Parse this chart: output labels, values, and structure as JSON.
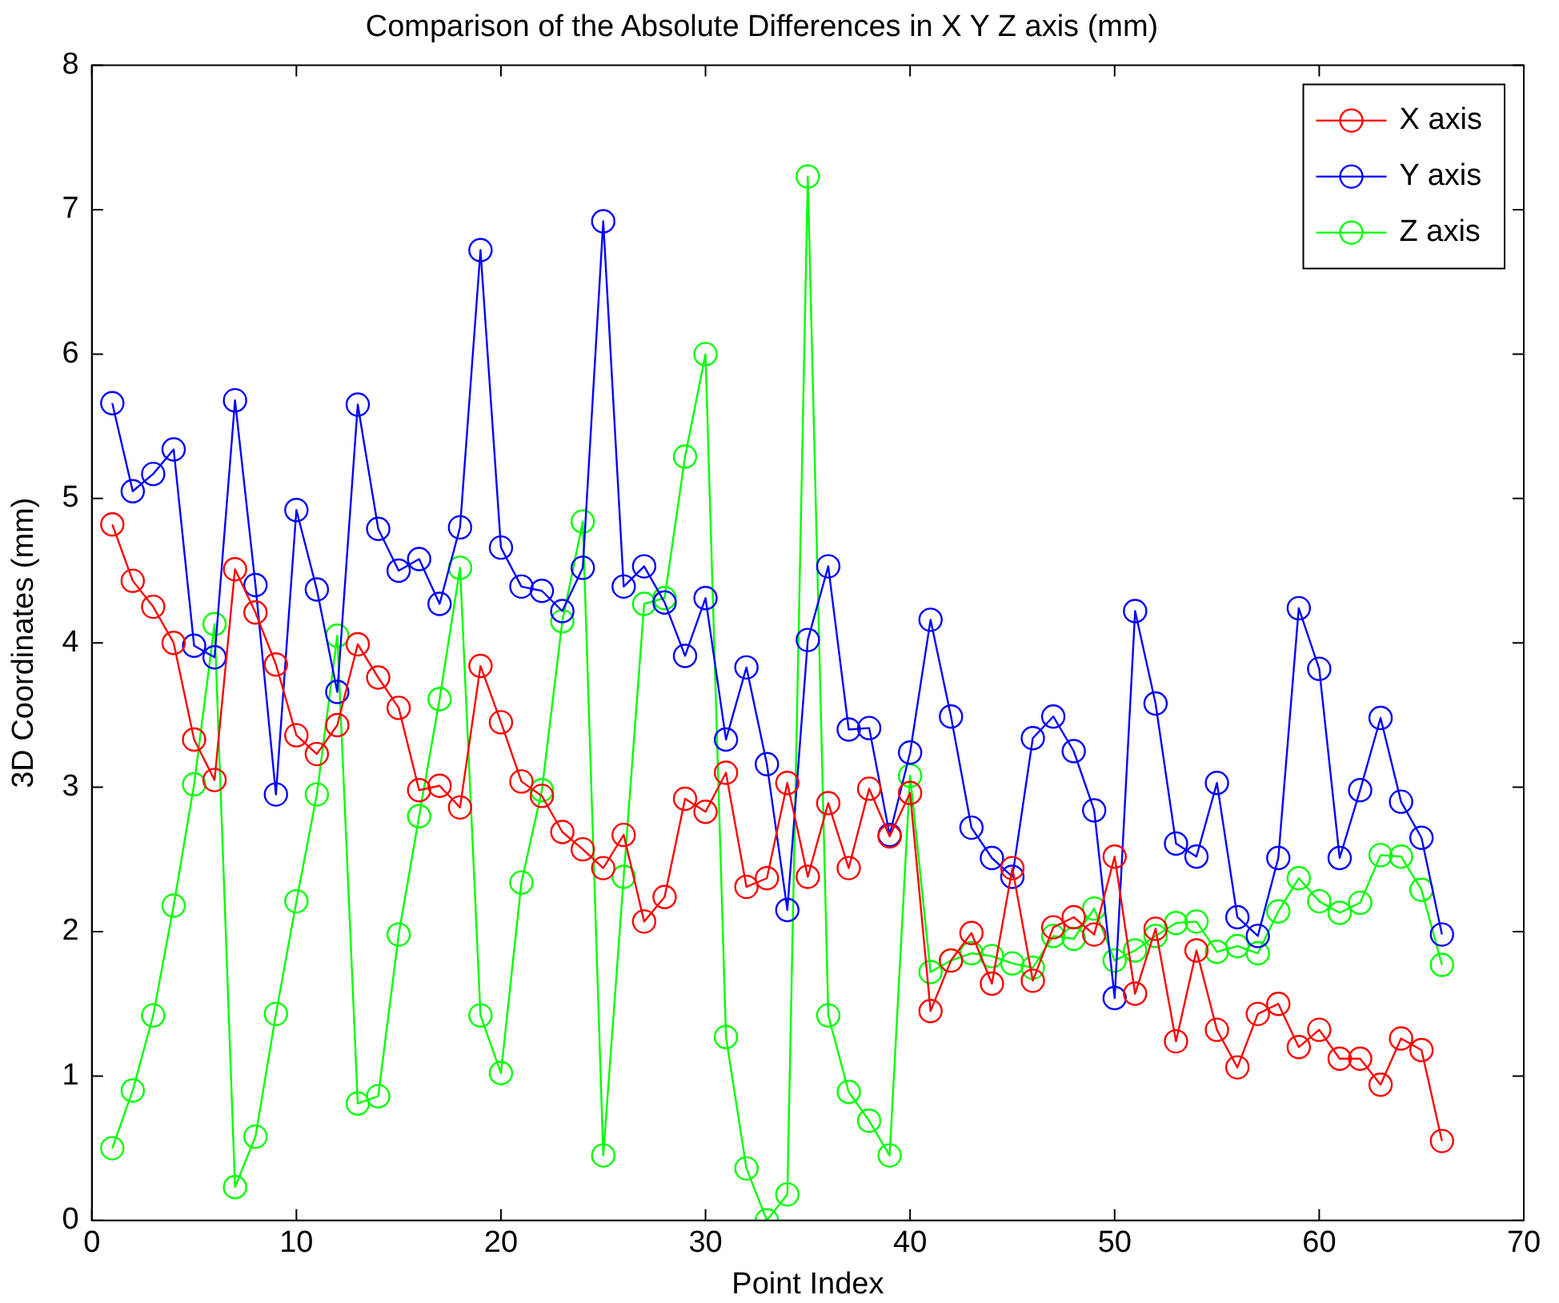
{
  "chart_data": {
    "type": "line",
    "title": "Comparison of the Absolute Differences in X Y Z axis (mm)",
    "xlabel": "Point Index",
    "ylabel": "3D Coordinates (mm)",
    "x": [
      1,
      2,
      3,
      4,
      5,
      6,
      7,
      8,
      9,
      10,
      11,
      12,
      13,
      14,
      15,
      16,
      17,
      18,
      19,
      20,
      21,
      22,
      23,
      24,
      25,
      26,
      27,
      28,
      29,
      30,
      31,
      32,
      33,
      34,
      35,
      36,
      37,
      38,
      39,
      40,
      41,
      42,
      43,
      44,
      45,
      46,
      47,
      48,
      49,
      50,
      51,
      52,
      53,
      54,
      55,
      56,
      57,
      58,
      59,
      60,
      61,
      62,
      63,
      64,
      65,
      66
    ],
    "series": [
      {
        "name": "X axis",
        "color": "#ff0000",
        "values": [
          4.82,
          4.43,
          4.25,
          4.0,
          3.33,
          3.05,
          4.51,
          4.21,
          3.85,
          3.36,
          3.23,
          3.43,
          3.99,
          3.76,
          3.55,
          2.98,
          3.01,
          2.86,
          3.84,
          3.45,
          3.04,
          2.94,
          2.69,
          2.57,
          2.44,
          2.67,
          2.07,
          2.24,
          2.92,
          2.83,
          3.1,
          2.31,
          2.37,
          3.03,
          2.38,
          2.89,
          2.44,
          2.99,
          2.66,
          2.96,
          1.45,
          1.8,
          1.99,
          1.64,
          2.44,
          1.66,
          2.03,
          2.1,
          1.98,
          2.52,
          1.57,
          2.02,
          1.24,
          1.87,
          1.32,
          1.06,
          1.43,
          1.5,
          1.2,
          1.32,
          1.12,
          1.12,
          0.94,
          1.26,
          1.18,
          0.55
        ]
      },
      {
        "name": "Y axis",
        "color": "#0000ff",
        "values": [
          5.66,
          5.05,
          5.17,
          5.34,
          3.98,
          3.9,
          5.68,
          4.4,
          2.95,
          4.92,
          4.37,
          3.66,
          5.65,
          4.79,
          4.5,
          4.58,
          4.27,
          4.8,
          6.72,
          4.66,
          4.39,
          4.36,
          4.22,
          4.52,
          6.92,
          4.39,
          4.53,
          4.28,
          3.91,
          4.31,
          3.33,
          3.83,
          3.16,
          2.15,
          4.02,
          4.53,
          3.4,
          3.41,
          2.67,
          3.24,
          4.16,
          3.49,
          2.72,
          2.51,
          2.38,
          3.34,
          3.49,
          3.25,
          2.84,
          1.54,
          4.22,
          3.58,
          2.61,
          2.52,
          3.03,
          2.1,
          1.97,
          2.51,
          4.24,
          3.82,
          2.51,
          2.98,
          3.48,
          2.9,
          2.65,
          1.98
        ]
      },
      {
        "name": "Z axis",
        "color": "#00ff00",
        "values": [
          0.5,
          0.9,
          1.42,
          2.18,
          3.02,
          4.13,
          0.23,
          0.58,
          1.43,
          2.21,
          2.95,
          4.05,
          0.81,
          0.86,
          1.98,
          2.8,
          3.61,
          4.52,
          1.42,
          1.02,
          2.34,
          2.98,
          4.15,
          4.84,
          0.45,
          2.38,
          4.27,
          4.31,
          5.29,
          6.0,
          1.27,
          0.36,
          0.0,
          0.18,
          7.23,
          1.42,
          0.89,
          0.69,
          0.45,
          3.08,
          1.72,
          1.8,
          1.85,
          1.83,
          1.78,
          1.75,
          1.97,
          1.95,
          2.16,
          1.8,
          1.87,
          1.97,
          2.06,
          2.07,
          1.86,
          1.9,
          1.85,
          2.14,
          2.37,
          2.21,
          2.13,
          2.2,
          2.53,
          2.52,
          2.29,
          1.77
        ]
      }
    ],
    "xlim": [
      0,
      70
    ],
    "xticks": [
      0,
      10,
      20,
      30,
      40,
      50,
      60,
      70
    ],
    "ylim": [
      0,
      8
    ],
    "yticks": [
      0,
      1,
      2,
      3,
      4,
      5,
      6,
      7,
      8
    ],
    "grid": false,
    "legend": "top right",
    "marker": "circle",
    "line_style": "solid"
  }
}
